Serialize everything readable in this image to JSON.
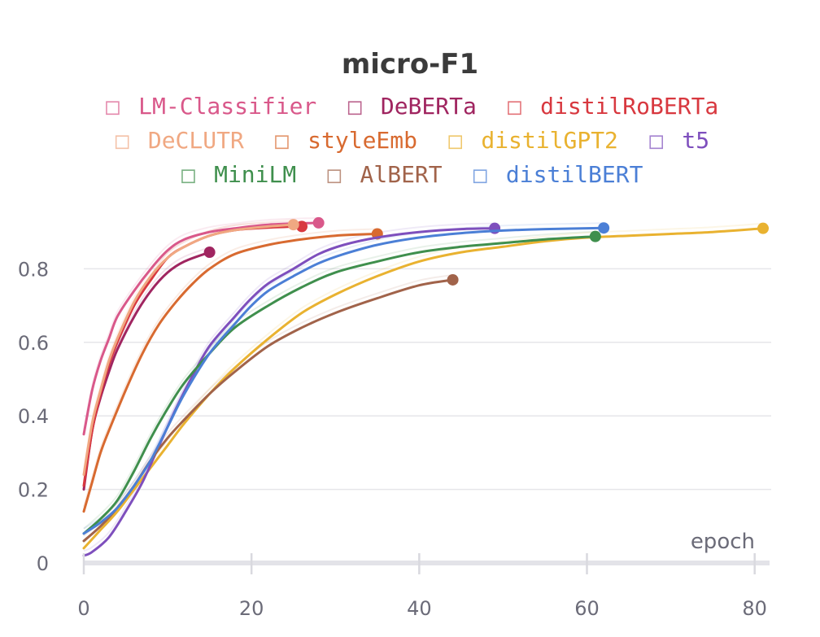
{
  "chart_data": {
    "type": "line",
    "title": "micro-F1",
    "xlabel": "epoch",
    "ylabel": "",
    "xlim": [
      0,
      81
    ],
    "ylim": [
      0,
      1
    ],
    "x_ticks": [
      0,
      20,
      40,
      60,
      80
    ],
    "y_ticks": [
      0,
      0.2,
      0.4,
      0.6,
      0.8
    ],
    "y_tick_labels": [
      "0",
      "0.2",
      "0.4",
      "0.6",
      "0.8"
    ],
    "x_tick_labels": [
      "0",
      "20",
      "40",
      "60",
      "80"
    ],
    "legend_position": "top",
    "legend_marker": "□",
    "series": [
      {
        "name": "LM-Classifier",
        "color": "#d9588a",
        "x": [
          0,
          1,
          2,
          3,
          4,
          6,
          8,
          10,
          12,
          15,
          18,
          22,
          28
        ],
        "y": [
          0.35,
          0.47,
          0.55,
          0.61,
          0.67,
          0.74,
          0.8,
          0.85,
          0.88,
          0.9,
          0.91,
          0.92,
          0.925
        ]
      },
      {
        "name": "DeBERTa",
        "color": "#a02560",
        "x": [
          0,
          1,
          2,
          3,
          4,
          6,
          8,
          10,
          12,
          15
        ],
        "y": [
          0.2,
          0.36,
          0.45,
          0.52,
          0.58,
          0.67,
          0.74,
          0.79,
          0.82,
          0.845
        ]
      },
      {
        "name": "distilRoBERTa",
        "color": "#d8383f",
        "x": [
          0,
          1,
          2,
          3,
          4,
          6,
          8,
          10,
          12,
          15,
          18,
          22,
          26
        ],
        "y": [
          0.21,
          0.36,
          0.46,
          0.54,
          0.6,
          0.7,
          0.77,
          0.83,
          0.86,
          0.89,
          0.905,
          0.912,
          0.915
        ]
      },
      {
        "name": "DeCLUTR",
        "color": "#f0a882",
        "x": [
          0,
          1,
          2,
          3,
          4,
          6,
          8,
          10,
          12,
          15,
          18,
          22,
          25
        ],
        "y": [
          0.24,
          0.38,
          0.47,
          0.55,
          0.61,
          0.71,
          0.78,
          0.83,
          0.86,
          0.89,
          0.905,
          0.915,
          0.92
        ]
      },
      {
        "name": "styleEmb",
        "color": "#d86a30",
        "x": [
          0,
          1,
          2,
          3,
          5,
          7,
          9,
          11,
          13,
          15,
          18,
          22,
          26,
          30,
          35
        ],
        "y": [
          0.14,
          0.22,
          0.3,
          0.36,
          0.47,
          0.57,
          0.65,
          0.71,
          0.76,
          0.8,
          0.84,
          0.865,
          0.88,
          0.89,
          0.895
        ]
      },
      {
        "name": "distilGPT2",
        "color": "#e9b230",
        "x": [
          0,
          2,
          4,
          6,
          8,
          10,
          12,
          15,
          18,
          22,
          26,
          30,
          35,
          40,
          45,
          50,
          55,
          60,
          65,
          70,
          75,
          81
        ],
        "y": [
          0.04,
          0.09,
          0.14,
          0.2,
          0.26,
          0.32,
          0.38,
          0.46,
          0.53,
          0.61,
          0.68,
          0.73,
          0.78,
          0.82,
          0.845,
          0.86,
          0.875,
          0.885,
          0.89,
          0.895,
          0.9,
          0.91
        ]
      },
      {
        "name": "t5",
        "color": "#7e4fbd",
        "x": [
          0,
          1,
          3,
          5,
          7,
          9,
          11,
          13,
          15,
          18,
          20,
          22,
          25,
          28,
          31,
          35,
          40,
          45,
          49
        ],
        "y": [
          0.02,
          0.03,
          0.07,
          0.14,
          0.22,
          0.32,
          0.42,
          0.51,
          0.59,
          0.67,
          0.72,
          0.76,
          0.8,
          0.84,
          0.865,
          0.885,
          0.9,
          0.908,
          0.91
        ]
      },
      {
        "name": "MiniLM",
        "color": "#3f8f4d",
        "x": [
          0,
          2,
          4,
          6,
          8,
          10,
          12,
          15,
          18,
          22,
          26,
          30,
          35,
          40,
          45,
          50,
          55,
          61
        ],
        "y": [
          0.08,
          0.12,
          0.17,
          0.25,
          0.34,
          0.42,
          0.49,
          0.57,
          0.64,
          0.7,
          0.75,
          0.79,
          0.82,
          0.845,
          0.86,
          0.87,
          0.88,
          0.888
        ]
      },
      {
        "name": "AlBERT",
        "color": "#a1634a",
        "x": [
          0,
          2,
          4,
          6,
          8,
          10,
          12,
          15,
          18,
          22,
          26,
          30,
          35,
          40,
          44
        ],
        "y": [
          0.06,
          0.1,
          0.15,
          0.21,
          0.28,
          0.34,
          0.39,
          0.46,
          0.52,
          0.59,
          0.64,
          0.68,
          0.72,
          0.755,
          0.77
        ]
      },
      {
        "name": "distilBERT",
        "color": "#4b7fd6",
        "x": [
          0,
          2,
          4,
          6,
          8,
          10,
          12,
          15,
          18,
          20,
          22,
          25,
          28,
          31,
          35,
          40,
          45,
          50,
          55,
          62
        ],
        "y": [
          0.08,
          0.11,
          0.15,
          0.21,
          0.28,
          0.37,
          0.46,
          0.57,
          0.65,
          0.7,
          0.74,
          0.78,
          0.815,
          0.84,
          0.865,
          0.885,
          0.897,
          0.904,
          0.908,
          0.911
        ]
      }
    ]
  }
}
